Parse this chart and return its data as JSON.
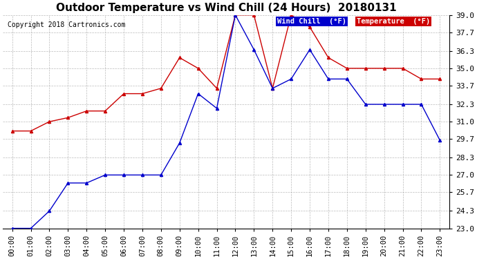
{
  "title": "Outdoor Temperature vs Wind Chill (24 Hours)  20180131",
  "copyright": "Copyright 2018 Cartronics.com",
  "background_color": "#ffffff",
  "plot_bg_color": "#ffffff",
  "grid_color": "#aaaaaa",
  "hours": [
    "00:00",
    "01:00",
    "02:00",
    "03:00",
    "04:00",
    "05:00",
    "06:00",
    "07:00",
    "08:00",
    "09:00",
    "10:00",
    "11:00",
    "12:00",
    "13:00",
    "14:00",
    "15:00",
    "16:00",
    "17:00",
    "18:00",
    "19:00",
    "20:00",
    "21:00",
    "22:00",
    "23:00"
  ],
  "temperature": [
    30.3,
    30.3,
    31.0,
    31.3,
    31.8,
    31.8,
    33.1,
    33.1,
    33.5,
    35.8,
    35.0,
    33.5,
    39.0,
    39.0,
    33.5,
    39.0,
    38.1,
    35.8,
    35.0,
    35.0,
    35.0,
    35.0,
    34.2,
    34.2
  ],
  "wind_chill": [
    23.0,
    23.0,
    24.3,
    26.4,
    26.4,
    27.0,
    27.0,
    27.0,
    27.0,
    29.4,
    33.1,
    32.0,
    39.0,
    36.4,
    33.5,
    34.2,
    36.4,
    34.2,
    34.2,
    32.3,
    32.3,
    32.3,
    32.3,
    29.6
  ],
  "temp_color": "#cc0000",
  "wind_chill_color": "#0000cc",
  "ylim_min": 23.0,
  "ylim_max": 39.0,
  "yticks": [
    23.0,
    24.3,
    25.7,
    27.0,
    28.3,
    29.7,
    31.0,
    32.3,
    33.7,
    35.0,
    36.3,
    37.7,
    39.0
  ],
  "legend_wind_chill_bg": "#0000cc",
  "legend_temp_bg": "#cc0000",
  "legend_wind_chill_text": "Wind Chill  (°F)",
  "legend_temp_text": "Temperature  (°F)",
  "title_fontsize": 11,
  "tick_fontsize": 8,
  "copyright_fontsize": 7
}
